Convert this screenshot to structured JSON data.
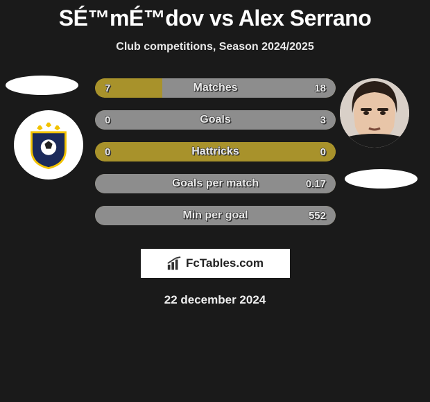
{
  "title": "SÉ™mÉ™dov vs Alex Serrano",
  "subtitle": "Club competitions, Season 2024/2025",
  "date": "22 december 2024",
  "logo_text": "FcTables.com",
  "colors": {
    "left": "#a8922b",
    "right": "#8d8d8d",
    "bar_text": "#eaeaea"
  },
  "crest": {
    "shield_fill": "#1b2a5a",
    "shield_stroke": "#f2c200",
    "star_fill": "#f2c200"
  },
  "bars": [
    {
      "label": "Matches",
      "left_val": "7",
      "right_val": "18",
      "left_pct": 28,
      "right_pct": 72
    },
    {
      "label": "Goals",
      "left_val": "0",
      "right_val": "3",
      "left_pct": 0,
      "right_pct": 100
    },
    {
      "label": "Hattricks",
      "left_val": "0",
      "right_val": "0",
      "left_pct": 100,
      "right_pct": 0
    },
    {
      "label": "Goals per match",
      "left_val": "",
      "right_val": "0.17",
      "left_pct": 0,
      "right_pct": 100
    },
    {
      "label": "Min per goal",
      "left_val": "",
      "right_val": "552",
      "left_pct": 0,
      "right_pct": 100
    }
  ]
}
